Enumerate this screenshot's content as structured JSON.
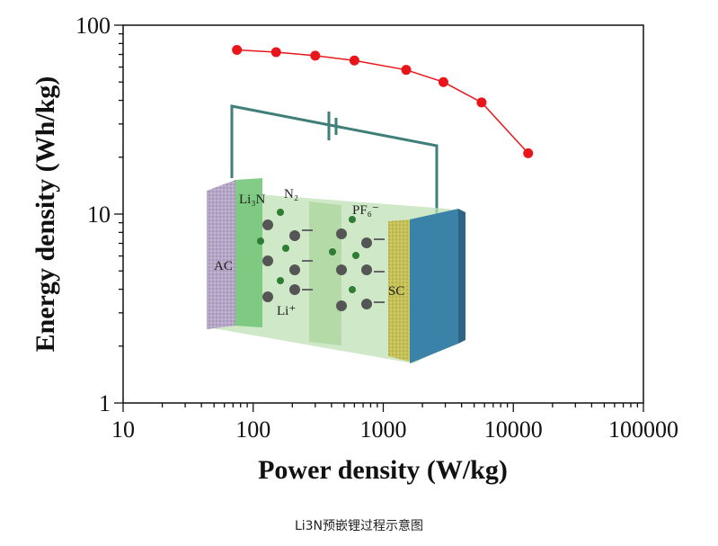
{
  "chart_data": {
    "type": "scatter",
    "xlabel": "Power density (W/kg)",
    "ylabel": "Energy density (Wh/kg)",
    "xscale": "log",
    "yscale": "log",
    "xlim": [
      10,
      100000
    ],
    "ylim": [
      1,
      100
    ],
    "x_ticks": [
      "10",
      "100",
      "1000",
      "10000",
      "100000"
    ],
    "y_ticks": [
      "1",
      "10",
      "100"
    ],
    "series": [
      {
        "color": "#e8161b",
        "points": [
          {
            "x": 75,
            "y": 74
          },
          {
            "x": 150,
            "y": 72
          },
          {
            "x": 300,
            "y": 69
          },
          {
            "x": 600,
            "y": 65
          },
          {
            "x": 1500,
            "y": 58
          },
          {
            "x": 2900,
            "y": 50
          },
          {
            "x": 5700,
            "y": 39
          },
          {
            "x": 13000,
            "y": 21
          }
        ]
      }
    ],
    "inset_labels": {
      "li3n": "Li₃N",
      "n2": "N₂",
      "pf6": "PF₆⁻",
      "ac": "AC",
      "sc": "SC",
      "li": "Li⁺"
    }
  },
  "caption": "Li3N预嵌锂过程示意图"
}
